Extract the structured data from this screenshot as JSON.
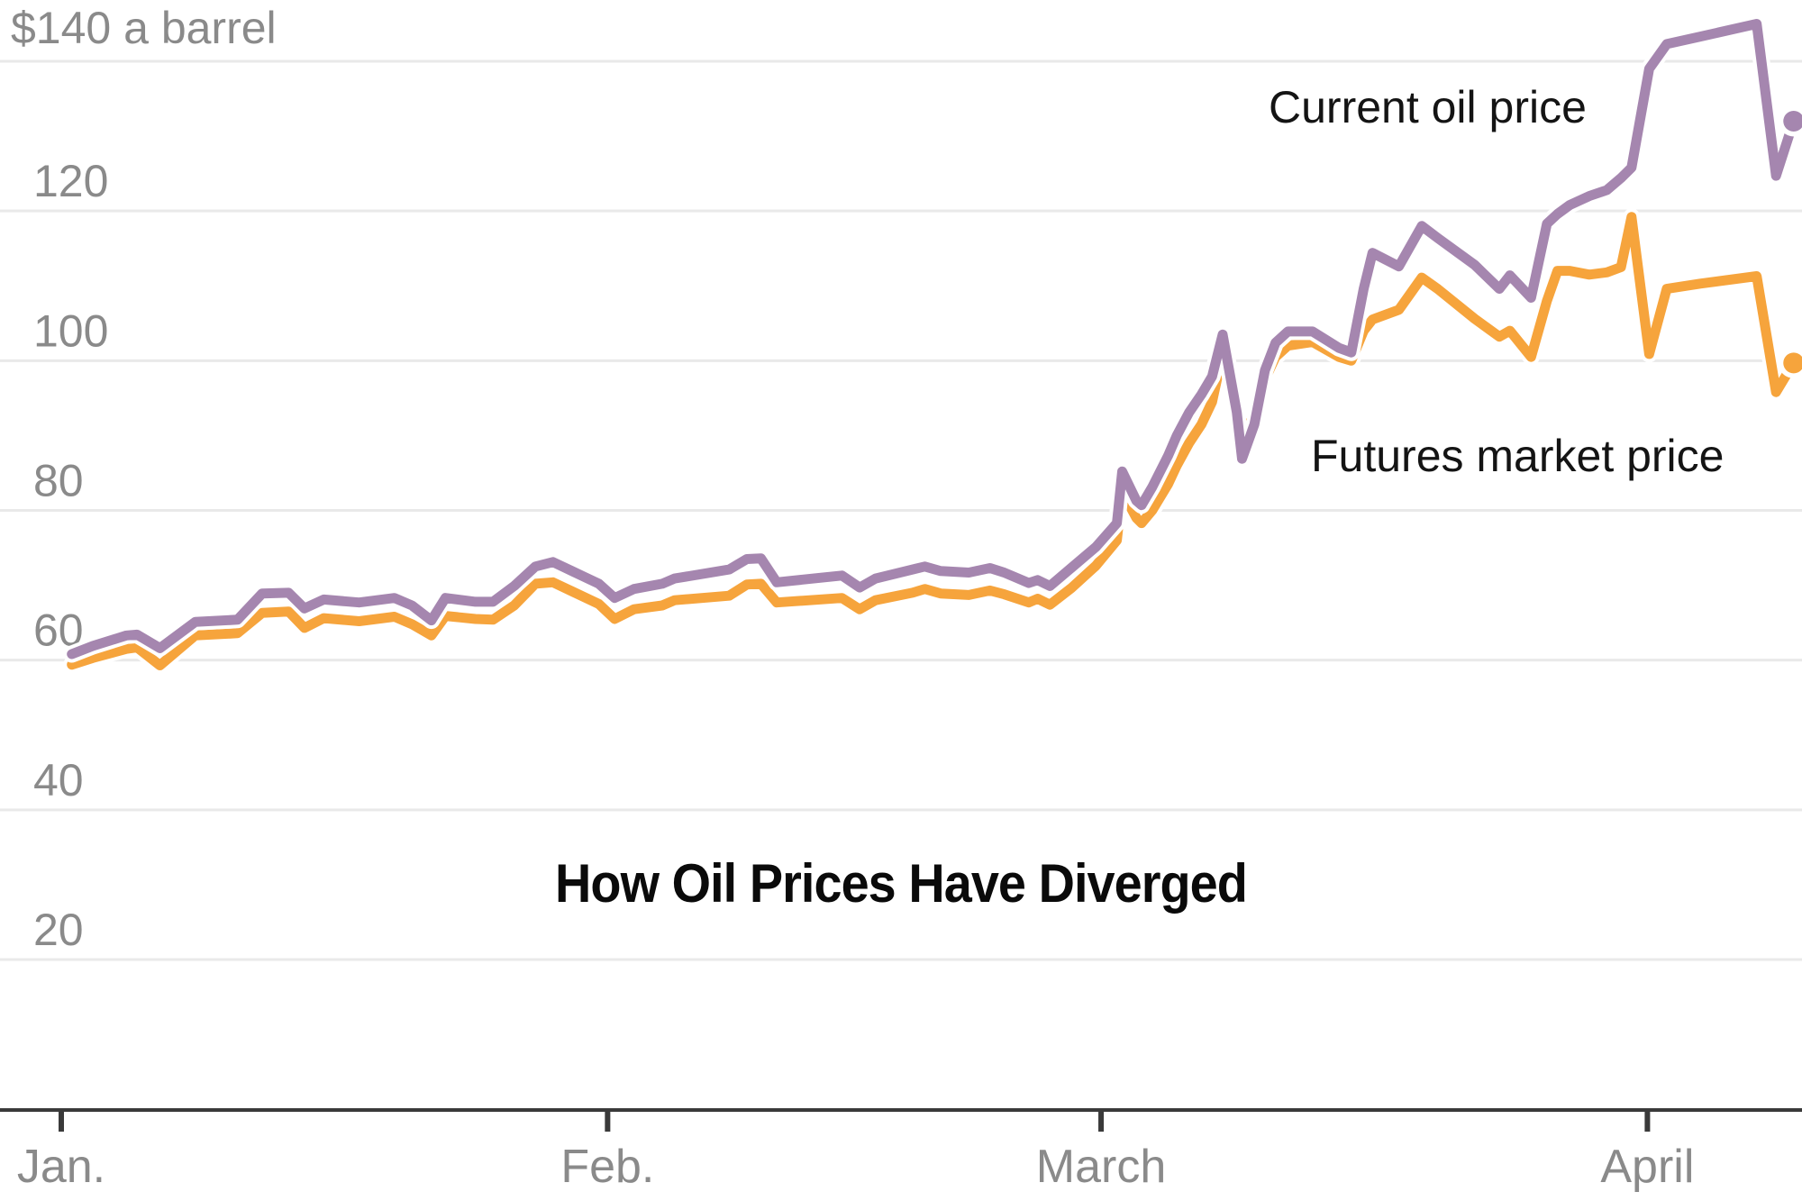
{
  "title": "How Oil Prices Have Diverged",
  "unit_label": "$140 a barrel",
  "annotations": {
    "current_label": "Current oil price",
    "futures_label": "Futures market price"
  },
  "colors": {
    "current_line": "#a586af",
    "futures_line": "#f6a43c",
    "grid": "#e9e9e9",
    "axis": "#3a3a3a",
    "tick_text": "#8a8a8a",
    "label_text": "#141414",
    "halo": "#ffffff"
  },
  "chart_data": {
    "type": "line",
    "title": "How Oil Prices Have Diverged",
    "xlabel": "",
    "ylabel": "$ a barrel",
    "grid": true,
    "legend_position": "inline-annotations",
    "ylim": [
      20,
      148
    ],
    "y_ticks": [
      20,
      40,
      60,
      80,
      100,
      120,
      140
    ],
    "y_top_tick_label": "$140 a barrel",
    "x_unit": "day of year (Jan 1 = 1)",
    "x_ticks": [
      {
        "label": "Jan.",
        "day": 1
      },
      {
        "label": "Feb.",
        "day": 32
      },
      {
        "label": "March",
        "day": 60
      },
      {
        "label": "April",
        "day": 91
      }
    ],
    "series": [
      {
        "name": "Current oil price",
        "color": "#a586af",
        "end_dot": true,
        "points": [
          [
            1.6,
            60.8
          ],
          [
            2.8,
            61.9
          ],
          [
            4.7,
            63.3
          ],
          [
            5.3,
            63.4
          ],
          [
            6.6,
            61.6
          ],
          [
            8.6,
            65.1
          ],
          [
            11.0,
            65.4
          ],
          [
            12.4,
            68.9
          ],
          [
            13.9,
            69.0
          ],
          [
            14.8,
            66.9
          ],
          [
            15.9,
            68.1
          ],
          [
            17.9,
            67.7
          ],
          [
            19.9,
            68.3
          ],
          [
            20.9,
            67.3
          ],
          [
            22.0,
            65.3
          ],
          [
            22.8,
            68.3
          ],
          [
            24.5,
            67.8
          ],
          [
            25.5,
            67.8
          ],
          [
            26.7,
            69.9
          ],
          [
            27.9,
            72.5
          ],
          [
            28.9,
            73.1
          ],
          [
            31.5,
            70.2
          ],
          [
            32.4,
            68.3
          ],
          [
            33.5,
            69.5
          ],
          [
            35.1,
            70.2
          ],
          [
            35.8,
            70.9
          ],
          [
            38.9,
            72.1
          ],
          [
            39.9,
            73.5
          ],
          [
            40.7,
            73.6
          ],
          [
            41.6,
            70.4
          ],
          [
            45.3,
            71.3
          ],
          [
            46.3,
            69.7
          ],
          [
            47.2,
            70.9
          ],
          [
            49.3,
            72.1
          ],
          [
            50.0,
            72.5
          ],
          [
            50.9,
            71.9
          ],
          [
            52.5,
            71.7
          ],
          [
            53.7,
            72.3
          ],
          [
            54.5,
            71.7
          ],
          [
            55.9,
            70.3
          ],
          [
            56.4,
            70.7
          ],
          [
            57.1,
            69.9
          ],
          [
            58.3,
            72.3
          ],
          [
            59.7,
            75.1
          ],
          [
            60.9,
            78.3
          ],
          [
            61.2,
            85.2
          ],
          [
            62.0,
            81.3
          ],
          [
            62.3,
            80.7
          ],
          [
            62.9,
            83.1
          ],
          [
            63.8,
            87.3
          ],
          [
            64.3,
            90.0
          ],
          [
            65.0,
            93.1
          ],
          [
            65.7,
            95.5
          ],
          [
            66.3,
            97.9
          ],
          [
            66.9,
            103.5
          ],
          [
            67.7,
            93.1
          ],
          [
            68.0,
            86.9
          ],
          [
            68.7,
            91.5
          ],
          [
            69.3,
            98.7
          ],
          [
            69.9,
            102.4
          ],
          [
            70.6,
            103.9
          ],
          [
            72.0,
            103.9
          ],
          [
            73.5,
            101.7
          ],
          [
            74.2,
            101.1
          ],
          [
            74.9,
            109.6
          ],
          [
            75.4,
            114.4
          ],
          [
            76.9,
            112.6
          ],
          [
            78.2,
            118.0
          ],
          [
            79.1,
            116.4
          ],
          [
            81.2,
            112.8
          ],
          [
            82.6,
            109.6
          ],
          [
            83.2,
            111.4
          ],
          [
            84.4,
            108.4
          ],
          [
            85.3,
            118.3
          ],
          [
            85.9,
            119.6
          ],
          [
            86.6,
            120.8
          ],
          [
            87.7,
            122.0
          ],
          [
            88.7,
            122.8
          ],
          [
            89.5,
            124.4
          ],
          [
            90.1,
            125.8
          ],
          [
            91.1,
            139.0
          ],
          [
            92.1,
            142.3
          ],
          [
            94.0,
            143.3
          ],
          [
            97.2,
            145.0
          ],
          [
            98.3,
            124.7
          ],
          [
            99.3,
            132.0
          ]
        ]
      },
      {
        "name": "Futures market price",
        "color": "#f6a43c",
        "end_dot": true,
        "points": [
          [
            1.6,
            59.4
          ],
          [
            2.8,
            60.3
          ],
          [
            4.7,
            61.5
          ],
          [
            5.3,
            61.7
          ],
          [
            6.6,
            59.3
          ],
          [
            8.6,
            63.3
          ],
          [
            11.0,
            63.6
          ],
          [
            12.4,
            66.3
          ],
          [
            13.9,
            66.5
          ],
          [
            14.8,
            64.3
          ],
          [
            15.9,
            65.6
          ],
          [
            17.9,
            65.2
          ],
          [
            19.9,
            65.8
          ],
          [
            20.9,
            64.8
          ],
          [
            22.0,
            63.3
          ],
          [
            22.8,
            65.9
          ],
          [
            24.5,
            65.5
          ],
          [
            25.5,
            65.4
          ],
          [
            26.7,
            67.3
          ],
          [
            27.9,
            70.2
          ],
          [
            28.9,
            70.4
          ],
          [
            31.5,
            67.5
          ],
          [
            32.4,
            65.5
          ],
          [
            33.5,
            66.8
          ],
          [
            35.1,
            67.3
          ],
          [
            35.8,
            68.0
          ],
          [
            38.9,
            68.6
          ],
          [
            39.9,
            70.1
          ],
          [
            40.7,
            70.2
          ],
          [
            41.6,
            67.7
          ],
          [
            45.3,
            68.3
          ],
          [
            46.3,
            66.8
          ],
          [
            47.2,
            68.0
          ],
          [
            49.3,
            69.0
          ],
          [
            50.0,
            69.5
          ],
          [
            50.9,
            68.9
          ],
          [
            52.5,
            68.7
          ],
          [
            53.7,
            69.3
          ],
          [
            54.5,
            68.8
          ],
          [
            55.9,
            67.7
          ],
          [
            56.4,
            68.2
          ],
          [
            57.1,
            67.4
          ],
          [
            58.3,
            69.6
          ],
          [
            59.7,
            72.6
          ],
          [
            60.9,
            76.0
          ],
          [
            61.2,
            82.5
          ],
          [
            62.0,
            79.0
          ],
          [
            62.3,
            78.3
          ],
          [
            62.9,
            80.0
          ],
          [
            63.8,
            83.5
          ],
          [
            64.3,
            86.0
          ],
          [
            65.0,
            89.0
          ],
          [
            65.7,
            91.5
          ],
          [
            66.3,
            94.5
          ],
          [
            66.9,
            101.0
          ],
          [
            67.7,
            94.0
          ],
          [
            68.0,
            90.5
          ],
          [
            68.7,
            92.5
          ],
          [
            69.3,
            97.5
          ],
          [
            69.9,
            100.5
          ],
          [
            70.6,
            102.0
          ],
          [
            72.0,
            102.5
          ],
          [
            73.5,
            100.5
          ],
          [
            74.2,
            100.0
          ],
          [
            74.9,
            104.0
          ],
          [
            75.4,
            105.5
          ],
          [
            76.9,
            106.8
          ],
          [
            78.2,
            111.1
          ],
          [
            79.1,
            109.6
          ],
          [
            81.2,
            105.6
          ],
          [
            82.6,
            103.2
          ],
          [
            83.2,
            104.0
          ],
          [
            84.4,
            100.5
          ],
          [
            85.3,
            108.0
          ],
          [
            85.9,
            112.0
          ],
          [
            86.6,
            112.0
          ],
          [
            87.7,
            111.5
          ],
          [
            88.7,
            111.8
          ],
          [
            89.5,
            112.5
          ],
          [
            90.1,
            119.2
          ],
          [
            91.1,
            100.9
          ],
          [
            92.1,
            109.6
          ],
          [
            94.0,
            110.3
          ],
          [
            97.2,
            111.3
          ],
          [
            98.3,
            95.8
          ],
          [
            99.3,
            99.7
          ]
        ]
      }
    ]
  }
}
